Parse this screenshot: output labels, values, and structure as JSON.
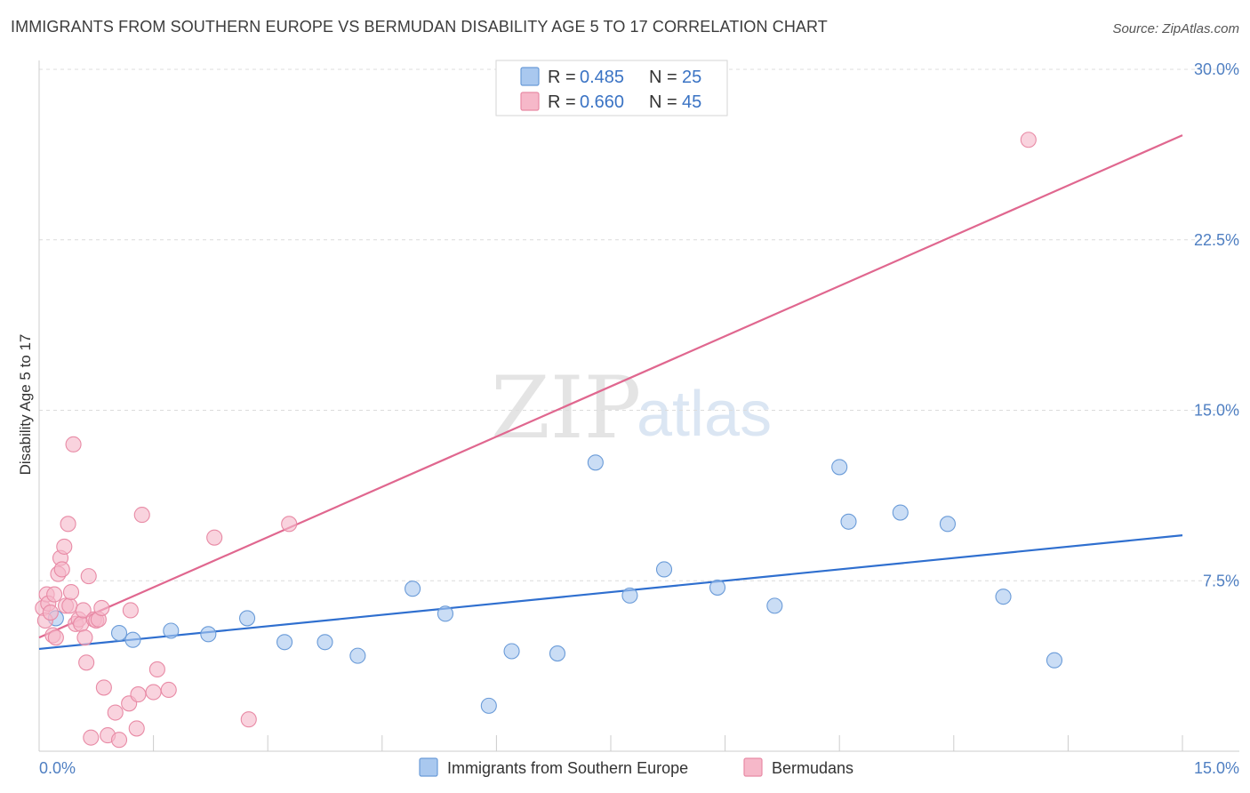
{
  "header": {
    "title": "IMMIGRANTS FROM SOUTHERN EUROPE VS BERMUDAN DISABILITY AGE 5 TO 17 CORRELATION CHART",
    "source": "Source: ZipAtlas.com"
  },
  "legend": {
    "rows": [
      {
        "r_label": "R =",
        "r_value": "0.485",
        "n_label": "N =",
        "n_value": "25",
        "color": "#a9c8ef"
      },
      {
        "r_label": "R =",
        "r_value": "0.660",
        "n_label": "N =",
        "n_value": "45",
        "color": "#f6b8c9"
      }
    ]
  },
  "bottom_legend": {
    "items": [
      {
        "label": "Immigrants from Southern Europe",
        "color": "#a9c8ef"
      },
      {
        "label": "Bermudans",
        "color": "#f6b8c9"
      }
    ]
  },
  "watermark": {
    "zip": "ZIP",
    "atlas": "atlas"
  },
  "chart_data": {
    "type": "scatter",
    "title": "IMMIGRANTS FROM SOUTHERN EUROPE VS BERMUDAN DISABILITY AGE 5 TO 17 CORRELATION CHART",
    "xlabel": "",
    "ylabel": "Disability Age 5 to 17",
    "xlim": [
      0,
      15
    ],
    "ylim": [
      0,
      30
    ],
    "x_tick_labels": [
      "0.0%",
      "15.0%"
    ],
    "y_ticks": [
      7.5,
      15.0,
      22.5,
      30.0
    ],
    "y_tick_labels": [
      "7.5%",
      "15.0%",
      "22.5%",
      "30.0%"
    ],
    "grid": true,
    "series": [
      {
        "name": "Immigrants from Southern Europe",
        "color": "#a9c8ef",
        "stroke": "#6a9bd8",
        "line_color": "#2f6fcf",
        "r": 0.485,
        "n": 25,
        "trend": {
          "x": [
            0,
            15
          ],
          "y": [
            4.5,
            9.5
          ]
        },
        "points": [
          [
            0.22,
            5.85
          ],
          [
            1.05,
            5.2
          ],
          [
            1.23,
            4.9
          ],
          [
            1.73,
            5.3
          ],
          [
            2.22,
            5.15
          ],
          [
            2.73,
            5.85
          ],
          [
            3.22,
            4.8
          ],
          [
            3.75,
            4.8
          ],
          [
            4.18,
            4.2
          ],
          [
            4.9,
            7.15
          ],
          [
            5.33,
            6.05
          ],
          [
            5.9,
            2.0
          ],
          [
            6.2,
            4.4
          ],
          [
            6.8,
            4.3
          ],
          [
            7.3,
            12.7
          ],
          [
            7.75,
            6.85
          ],
          [
            8.2,
            8.0
          ],
          [
            8.9,
            7.2
          ],
          [
            9.65,
            6.4
          ],
          [
            10.5,
            12.5
          ],
          [
            10.62,
            10.1
          ],
          [
            11.3,
            10.5
          ],
          [
            11.92,
            10.0
          ],
          [
            12.65,
            6.8
          ],
          [
            13.32,
            4.0
          ]
        ]
      },
      {
        "name": "Bermudans",
        "color": "#f6b8c9",
        "stroke": "#e88aa5",
        "line_color": "#e0678f",
        "r": 0.66,
        "n": 45,
        "trend": {
          "x": [
            0,
            15
          ],
          "y": [
            5.0,
            27.1
          ]
        },
        "points": [
          [
            0.05,
            6.3
          ],
          [
            0.08,
            5.75
          ],
          [
            0.1,
            6.9
          ],
          [
            0.12,
            6.5
          ],
          [
            0.15,
            6.1
          ],
          [
            0.18,
            5.1
          ],
          [
            0.2,
            6.9
          ],
          [
            0.22,
            5.0
          ],
          [
            0.25,
            7.8
          ],
          [
            0.28,
            8.5
          ],
          [
            0.3,
            8.0
          ],
          [
            0.33,
            9.0
          ],
          [
            0.35,
            6.4
          ],
          [
            0.38,
            10.0
          ],
          [
            0.4,
            6.4
          ],
          [
            0.42,
            7.0
          ],
          [
            0.45,
            13.5
          ],
          [
            0.48,
            5.6
          ],
          [
            0.52,
            5.8
          ],
          [
            0.55,
            5.6
          ],
          [
            0.58,
            6.2
          ],
          [
            0.6,
            5.0
          ],
          [
            0.62,
            3.9
          ],
          [
            0.65,
            7.7
          ],
          [
            0.68,
            0.6
          ],
          [
            0.72,
            5.8
          ],
          [
            0.75,
            5.75
          ],
          [
            0.78,
            5.8
          ],
          [
            0.82,
            6.3
          ],
          [
            0.85,
            2.8
          ],
          [
            0.9,
            0.7
          ],
          [
            1.0,
            1.7
          ],
          [
            1.05,
            0.5
          ],
          [
            1.18,
            2.1
          ],
          [
            1.2,
            6.2
          ],
          [
            1.28,
            1.0
          ],
          [
            1.3,
            2.5
          ],
          [
            1.35,
            10.4
          ],
          [
            1.5,
            2.6
          ],
          [
            1.55,
            3.6
          ],
          [
            1.7,
            2.7
          ],
          [
            2.3,
            9.4
          ],
          [
            2.75,
            1.4
          ],
          [
            3.28,
            10.0
          ],
          [
            12.98,
            26.9
          ]
        ]
      }
    ]
  }
}
